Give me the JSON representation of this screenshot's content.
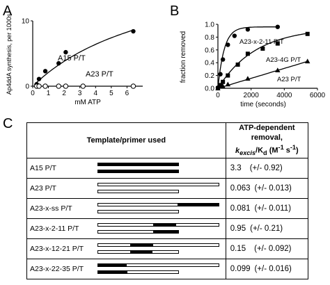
{
  "panels": {
    "a": "A",
    "b": "B",
    "c": "C"
  },
  "chart_data": [
    {
      "type": "scatter",
      "panel": "A",
      "xlabel": "mM ATP",
      "ylabel": "Ap4ddA synthesis, per 1000s",
      "xlim": [
        0,
        7
      ],
      "ylim": [
        0,
        10
      ],
      "xticks": [
        "0",
        "1",
        "2",
        "3",
        "4",
        "5",
        "6"
      ],
      "yticks": [
        "0",
        "10"
      ],
      "series": [
        {
          "name": "A15 P/T",
          "marker": "filled-circle",
          "x": [
            0.25,
            0.4,
            0.8,
            1.65,
            2.1,
            6.4
          ],
          "y": [
            0.3,
            1.1,
            2.3,
            3.5,
            5.2,
            8.4
          ]
        },
        {
          "name": "A23 P/T",
          "marker": "open-circle",
          "x": [
            0.25,
            0.4,
            0.8,
            1.65,
            2.1,
            3.2,
            6.4
          ],
          "y": [
            0,
            0,
            0,
            0,
            0,
            0,
            0
          ]
        }
      ]
    },
    {
      "type": "scatter",
      "panel": "B",
      "xlabel": "time (seconds)",
      "ylabel": "fraction removed",
      "xlim": [
        0,
        6000
      ],
      "ylim": [
        0,
        1.0
      ],
      "xticks": [
        "0",
        "2000",
        "4000",
        "6000"
      ],
      "yticks": [
        "0.0",
        "0.2",
        "0.4",
        "0.6",
        "0.8",
        "1.0"
      ],
      "series": [
        {
          "name": "A23-x-2-11 P/T",
          "marker": "filled-circle",
          "x": [
            0,
            150,
            300,
            600,
            1000,
            1800,
            3600
          ],
          "y": [
            0.01,
            0.22,
            0.45,
            0.68,
            0.82,
            0.92,
            0.96
          ]
        },
        {
          "name": "A23-4G P/T",
          "marker": "filled-square",
          "x": [
            0,
            150,
            300,
            600,
            1200,
            1800,
            2700,
            3600,
            5400
          ],
          "y": [
            0.0,
            0.05,
            0.1,
            0.2,
            0.37,
            0.54,
            0.62,
            0.7,
            0.85
          ]
        },
        {
          "name": "A23 P/T",
          "marker": "filled-triangle",
          "x": [
            0,
            300,
            600,
            1800,
            3600,
            5400
          ],
          "y": [
            0.0,
            0.03,
            0.06,
            0.15,
            0.28,
            0.42
          ]
        }
      ]
    },
    {
      "type": "table",
      "panel": "C",
      "columns": [
        "Template/primer used",
        "ATP-dependent removal,",
        "kexcis/Kd (M-1 s-1)"
      ],
      "rows": [
        {
          "name": "A15 P/T",
          "value": "3.3",
          "err": "(+/- 0.92)"
        },
        {
          "name": "A23 P/T",
          "value": "0.063",
          "err": "(+/- 0.013)"
        },
        {
          "name": "A23-x-ss P/T",
          "value": "0.081",
          "err": "(+/- 0.011)"
        },
        {
          "name": "A23-x-2-11 P/T",
          "value": "0.95",
          "err": "(+/- 0.21)"
        },
        {
          "name": "A23-x-12-21 P/T",
          "value": "0.15",
          "err": "(+/- 0.092)"
        },
        {
          "name": "A23-x-22-35 P/T",
          "value": "0.099",
          "err": "(+/- 0.016)"
        }
      ]
    }
  ],
  "table_header": {
    "col1": "Template/primer used",
    "col2_line1": "ATP-dependent removal,",
    "col2_k": "k",
    "col2_excis": "excis",
    "col2_slash": "/K",
    "col2_d": "d",
    "col2_units": " (M",
    "col2_exp1": "-1",
    "col2_s": " s",
    "col2_exp2": "-1",
    "col2_close": ")"
  },
  "colors": {
    "ink": "#000000",
    "background": "#ffffff"
  }
}
